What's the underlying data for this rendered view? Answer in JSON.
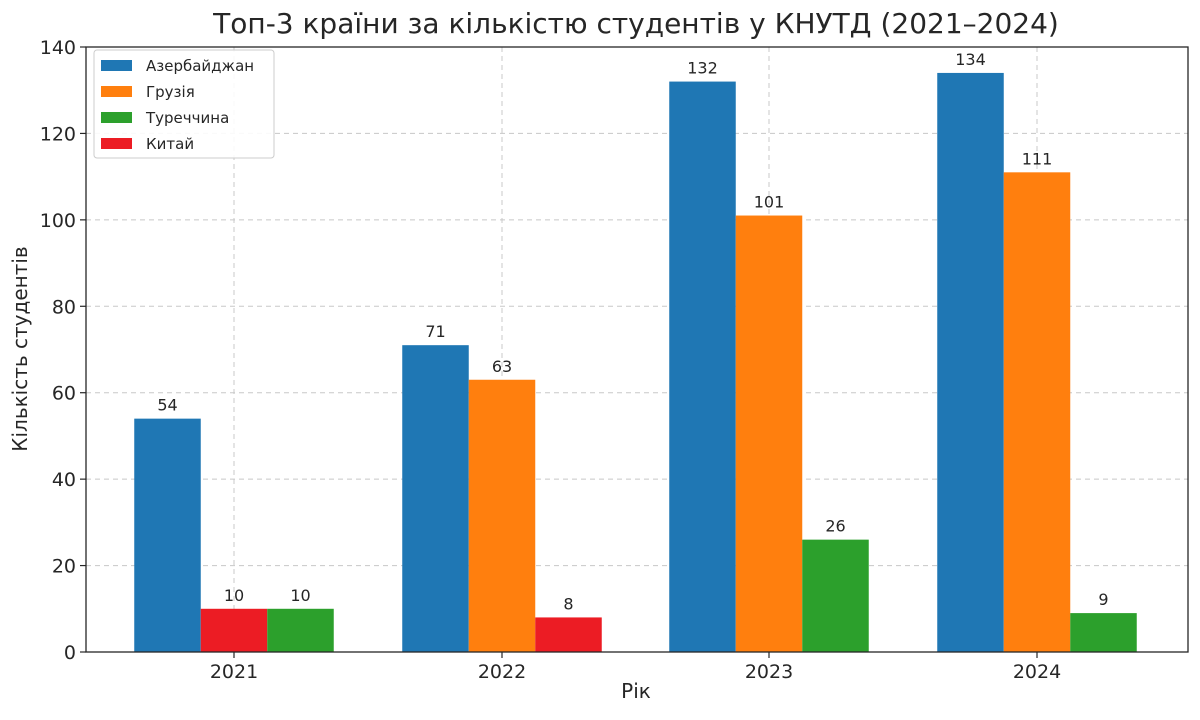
{
  "chart_data": {
    "type": "bar",
    "title": "Топ-3 країни за кількістю студентів у КНУТД (2021–2024)",
    "xlabel": "Рік",
    "ylabel": "Кількість студентів",
    "ylim": [
      0,
      140
    ],
    "yticks": [
      0,
      20,
      40,
      60,
      80,
      100,
      120,
      140
    ],
    "grid": true,
    "legend_position": "top-left",
    "groups": [
      {
        "year": "2021",
        "bars": [
          {
            "series": "Азербайджан",
            "value": 54
          },
          {
            "series": "Китай",
            "value": 10
          },
          {
            "series": "Туреччина",
            "value": 10
          }
        ]
      },
      {
        "year": "2022",
        "bars": [
          {
            "series": "Азербайджан",
            "value": 71
          },
          {
            "series": "Грузія",
            "value": 63
          },
          {
            "series": "Китай",
            "value": 8
          }
        ]
      },
      {
        "year": "2023",
        "bars": [
          {
            "series": "Азербайджан",
            "value": 132
          },
          {
            "series": "Грузія",
            "value": 101
          },
          {
            "series": "Туреччина",
            "value": 26
          }
        ]
      },
      {
        "year": "2024",
        "bars": [
          {
            "series": "Азербайджан",
            "value": 134
          },
          {
            "series": "Грузія",
            "value": 111
          },
          {
            "series": "Туреччина",
            "value": 9
          }
        ]
      }
    ],
    "legend": [
      {
        "name": "Азербайджан",
        "color": "#1f77b4"
      },
      {
        "name": "Грузія",
        "color": "#ff7f0e"
      },
      {
        "name": "Туреччина",
        "color": "#2ca02c"
      },
      {
        "name": "Китай",
        "color": "#ec1c24"
      }
    ]
  }
}
